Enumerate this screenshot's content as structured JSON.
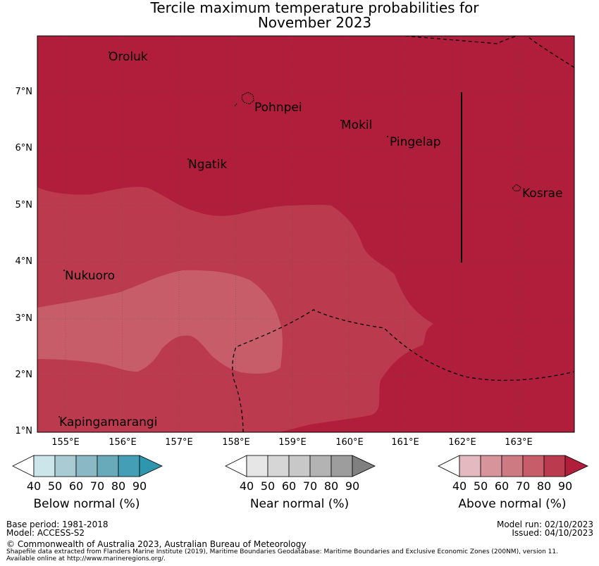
{
  "title": {
    "line1": "Tercile maximum temperature probabilities for",
    "line2": "November 2023"
  },
  "map": {
    "x_ticks": [
      "155°E",
      "156°E",
      "157°E",
      "158°E",
      "159°E",
      "160°E",
      "161°E",
      "162°E",
      "163°E"
    ],
    "y_ticks": [
      "7°N",
      "6°N",
      "5°N",
      "4°N",
      "3°N",
      "2°N",
      "1°N"
    ],
    "places": [
      {
        "name": "Oroluk"
      },
      {
        "name": "Pohnpei"
      },
      {
        "name": "Mokil"
      },
      {
        "name": "Pingelap"
      },
      {
        "name": "Ngatik"
      },
      {
        "name": "Kosrae"
      },
      {
        "name": "Nukuoro"
      },
      {
        "name": "Kapingamarangi"
      }
    ],
    "colors": {
      "above_60_70": "#c75d68",
      "above_70_80": "#bc3a4d",
      "above_80_90": "#b01e3b"
    }
  },
  "legends": [
    {
      "title": "Below normal (%)",
      "ticks": [
        "40",
        "50",
        "60",
        "70",
        "80",
        "90"
      ],
      "colors": [
        "#ffffff",
        "#cce5eb",
        "#a9cbd3",
        "#8ab8c5",
        "#68a9ba",
        "#449fb6",
        "#2e96ad"
      ]
    },
    {
      "title": "Near normal (%)",
      "ticks": [
        "40",
        "50",
        "60",
        "70",
        "80",
        "90"
      ],
      "colors": [
        "#ffffff",
        "#e6e6e6",
        "#d6d6d6",
        "#c8c8c8",
        "#b3b3b3",
        "#9d9d9d",
        "#808080"
      ]
    },
    {
      "title": "Above normal (%)",
      "ticks": [
        "40",
        "50",
        "60",
        "70",
        "80",
        "90"
      ],
      "colors": [
        "#ffffff",
        "#e4b9c0",
        "#d8949b",
        "#cd7a82",
        "#c75d68",
        "#bc3a4d",
        "#b01e3b"
      ]
    }
  ],
  "footer": {
    "base_period": "Base period: 1981-2018",
    "model": "Model: ACCESS-S2",
    "model_run": "Model run: 02/10/2023",
    "issued": "Issued: 04/10/2023",
    "copyright": "© Commonwealth of Australia 2023, Australian Bureau of Meteorology",
    "shapefile": "Shapefile data extracted from Flanders Marine Institute (2019), Maritime Boundaries Geodatabase: Maritime Boundaries and Exclusive Economic Zones (200NM), version 11.",
    "available": "Available online at http://www.marineregions.org/."
  }
}
